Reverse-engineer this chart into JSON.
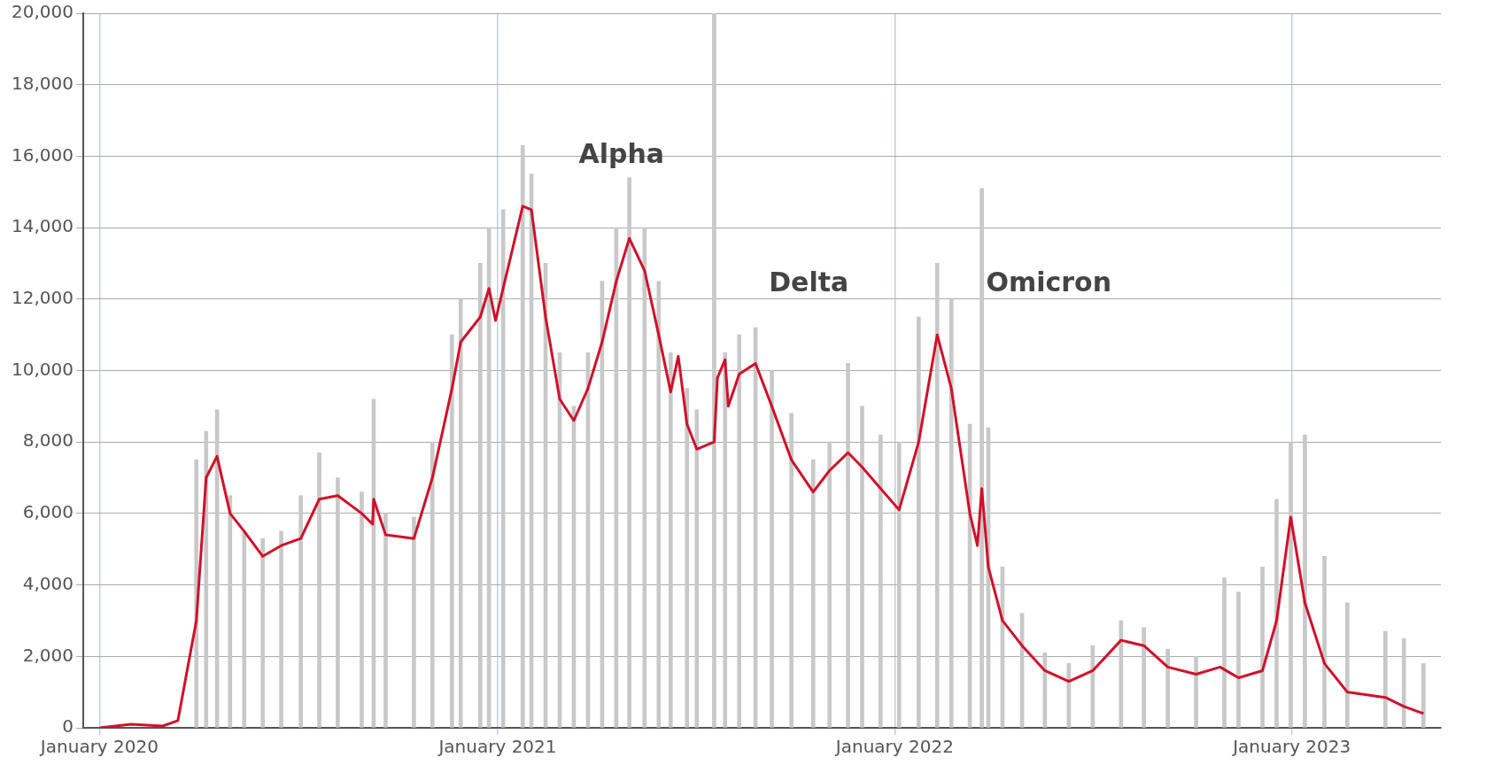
{
  "chart_data": {
    "type": "line",
    "xlim": [
      "2019-12-17",
      "2023-05-18"
    ],
    "ylim": [
      0,
      20000
    ],
    "xticks": [
      {
        "value": "2020-01-01",
        "label": "January 2020"
      },
      {
        "value": "2021-01-01",
        "label": "January 2021"
      },
      {
        "value": "2022-01-01",
        "label": "January 2022"
      },
      {
        "value": "2023-01-01",
        "label": "January 2023"
      }
    ],
    "yticks": [
      {
        "value": 0,
        "label": "0"
      },
      {
        "value": 2000,
        "label": "2,000"
      },
      {
        "value": 4000,
        "label": "4,000"
      },
      {
        "value": 6000,
        "label": "6,000"
      },
      {
        "value": 8000,
        "label": "8,000"
      },
      {
        "value": 10000,
        "label": "10,000"
      },
      {
        "value": 12000,
        "label": "12,000"
      },
      {
        "value": 14000,
        "label": "14,000"
      },
      {
        "value": 16000,
        "label": "16,000"
      },
      {
        "value": 18000,
        "label": "18,000"
      },
      {
        "value": 20000,
        "label": "20,000"
      }
    ],
    "grid": true,
    "marker": "none",
    "line_style": "solid",
    "annotations": [
      "Alpha",
      "Delta",
      "Omicron"
    ],
    "series": [
      {
        "type": "bar",
        "color": "#c8c8c8",
        "x": [
          "2020-03-30",
          "2020-04-08",
          "2020-04-18",
          "2020-04-30",
          "2020-05-13",
          "2020-05-30",
          "2020-06-16",
          "2020-07-04",
          "2020-07-21",
          "2020-08-07",
          "2020-08-29",
          "2020-09-09",
          "2020-09-20",
          "2020-10-16",
          "2020-11-02",
          "2020-11-20",
          "2020-11-28",
          "2020-12-16",
          "2020-12-24",
          "2021-01-06",
          "2021-01-24",
          "2021-02-01",
          "2021-02-14",
          "2021-02-27",
          "2021-03-12",
          "2021-03-25",
          "2021-04-07",
          "2021-04-20",
          "2021-05-02",
          "2021-05-16",
          "2021-05-29",
          "2021-06-09",
          "2021-06-24",
          "2021-07-03",
          "2021-07-19",
          "2021-07-29",
          "2021-08-11",
          "2021-08-26",
          "2021-09-10",
          "2021-09-28",
          "2021-10-18",
          "2021-11-02",
          "2021-11-19",
          "2021-12-02",
          "2021-12-19",
          "2022-01-05",
          "2022-01-23",
          "2022-02-09",
          "2022-02-22",
          "2022-03-11",
          "2022-03-22",
          "2022-03-28",
          "2022-04-10",
          "2022-04-28",
          "2022-05-19",
          "2022-06-10",
          "2022-07-02",
          "2022-07-28",
          "2022-08-18",
          "2022-09-09",
          "2022-10-05",
          "2022-10-31",
          "2022-11-13",
          "2022-12-05",
          "2022-12-18",
          "2022-12-31",
          "2023-01-13",
          "2023-01-31",
          "2023-02-21",
          "2023-03-28",
          "2023-04-14",
          "2023-05-02"
        ],
        "values": [
          7500,
          8300,
          8900,
          6500,
          5500,
          5300,
          5500,
          6500,
          7700,
          7000,
          6600,
          9200,
          6000,
          5900,
          8000,
          11000,
          12000,
          13000,
          14000,
          14500,
          16300,
          15500,
          13000,
          10500,
          9000,
          10500,
          12500,
          14000,
          15400,
          14000,
          12500,
          10500,
          9500,
          8900,
          20000,
          10500,
          11000,
          11200,
          10000,
          8800,
          7500,
          8000,
          10200,
          9000,
          8200,
          8000,
          11500,
          13000,
          12000,
          8500,
          15100,
          8400,
          4500,
          3200,
          2100,
          1800,
          2300,
          3000,
          2800,
          2200,
          2000,
          4200,
          3800,
          4500,
          6400,
          8000,
          8200,
          4800,
          3500,
          2700,
          2500,
          1800
        ]
      },
      {
        "color": "#d0102a",
        "x": [
          "2020-01-01",
          "2020-01-30",
          "2020-02-28",
          "2020-03-13",
          "2020-03-30",
          "2020-04-08",
          "2020-04-18",
          "2020-04-30",
          "2020-05-13",
          "2020-05-30",
          "2020-06-16",
          "2020-07-04",
          "2020-07-21",
          "2020-08-07",
          "2020-08-29",
          "2020-09-08",
          "2020-09-09",
          "2020-09-20",
          "2020-10-16",
          "2020-11-02",
          "2020-11-20",
          "2020-11-28",
          "2020-12-16",
          "2020-12-24",
          "2020-12-30",
          "2021-01-06",
          "2021-01-24",
          "2021-02-01",
          "2021-02-14",
          "2021-02-27",
          "2021-03-12",
          "2021-03-25",
          "2021-04-07",
          "2021-04-20",
          "2021-05-02",
          "2021-05-16",
          "2021-05-29",
          "2021-06-09",
          "2021-06-16",
          "2021-06-24",
          "2021-07-03",
          "2021-07-19",
          "2021-07-22",
          "2021-07-29",
          "2021-08-01",
          "2021-08-11",
          "2021-08-26",
          "2021-09-10",
          "2021-09-28",
          "2021-10-18",
          "2021-11-02",
          "2021-11-19",
          "2021-12-02",
          "2021-12-19",
          "2022-01-05",
          "2022-01-23",
          "2022-02-09",
          "2022-02-22",
          "2022-03-11",
          "2022-03-18",
          "2022-03-22",
          "2022-03-28",
          "2022-04-10",
          "2022-04-28",
          "2022-05-19",
          "2022-06-10",
          "2022-07-02",
          "2022-07-28",
          "2022-08-18",
          "2022-09-09",
          "2022-10-05",
          "2022-10-27",
          "2022-11-13",
          "2022-12-05",
          "2022-12-18",
          "2022-12-31",
          "2023-01-13",
          "2023-01-31",
          "2023-02-21",
          "2023-03-28",
          "2023-04-14",
          "2023-05-02"
        ],
        "values": [
          0,
          100,
          50,
          200,
          3000,
          7000,
          7600,
          6000,
          5500,
          4800,
          5100,
          5300,
          6400,
          6500,
          6000,
          5700,
          6400,
          5400,
          5300,
          7000,
          9500,
          10800,
          11500,
          12300,
          11400,
          12300,
          14600,
          14500,
          11500,
          9200,
          8600,
          9500,
          10800,
          12500,
          13700,
          12800,
          11000,
          9400,
          10400,
          8500,
          7800,
          8000,
          9800,
          10300,
          9000,
          9900,
          10200,
          9000,
          7500,
          6600,
          7200,
          7700,
          7300,
          6700,
          6100,
          8000,
          11000,
          9500,
          6000,
          5100,
          6700,
          4500,
          3000,
          2300,
          1600,
          1300,
          1600,
          2450,
          2300,
          1700,
          1500,
          1700,
          1400,
          1600,
          3000,
          5900,
          3500,
          1800,
          1000,
          850,
          600,
          400
        ]
      }
    ]
  }
}
